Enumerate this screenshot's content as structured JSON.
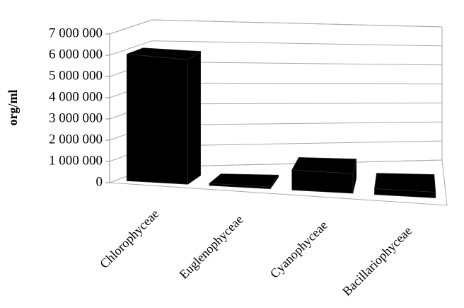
{
  "chart_data": {
    "type": "bar3d",
    "y_label": "org/ml",
    "categories": [
      "Chlorophyceae",
      "Euglenophyceae",
      "Cyanophyceae",
      "Bacillariophyceae"
    ],
    "values": [
      6000000,
      100000,
      1000000,
      300000
    ],
    "color": "#000000",
    "ylim": [
      0,
      7000000
    ],
    "yticks": [
      {
        "value": 0,
        "label": "0"
      },
      {
        "value": 1000000,
        "label": "1 000 000"
      },
      {
        "value": 2000000,
        "label": "2 000 000"
      },
      {
        "value": 3000000,
        "label": "3 000 000"
      },
      {
        "value": 4000000,
        "label": "4 000 000"
      },
      {
        "value": 5000000,
        "label": "5 000 000"
      },
      {
        "value": 6000000,
        "label": "6 000 000"
      },
      {
        "value": 7000000,
        "label": "7 000 000"
      }
    ],
    "grid": true
  }
}
